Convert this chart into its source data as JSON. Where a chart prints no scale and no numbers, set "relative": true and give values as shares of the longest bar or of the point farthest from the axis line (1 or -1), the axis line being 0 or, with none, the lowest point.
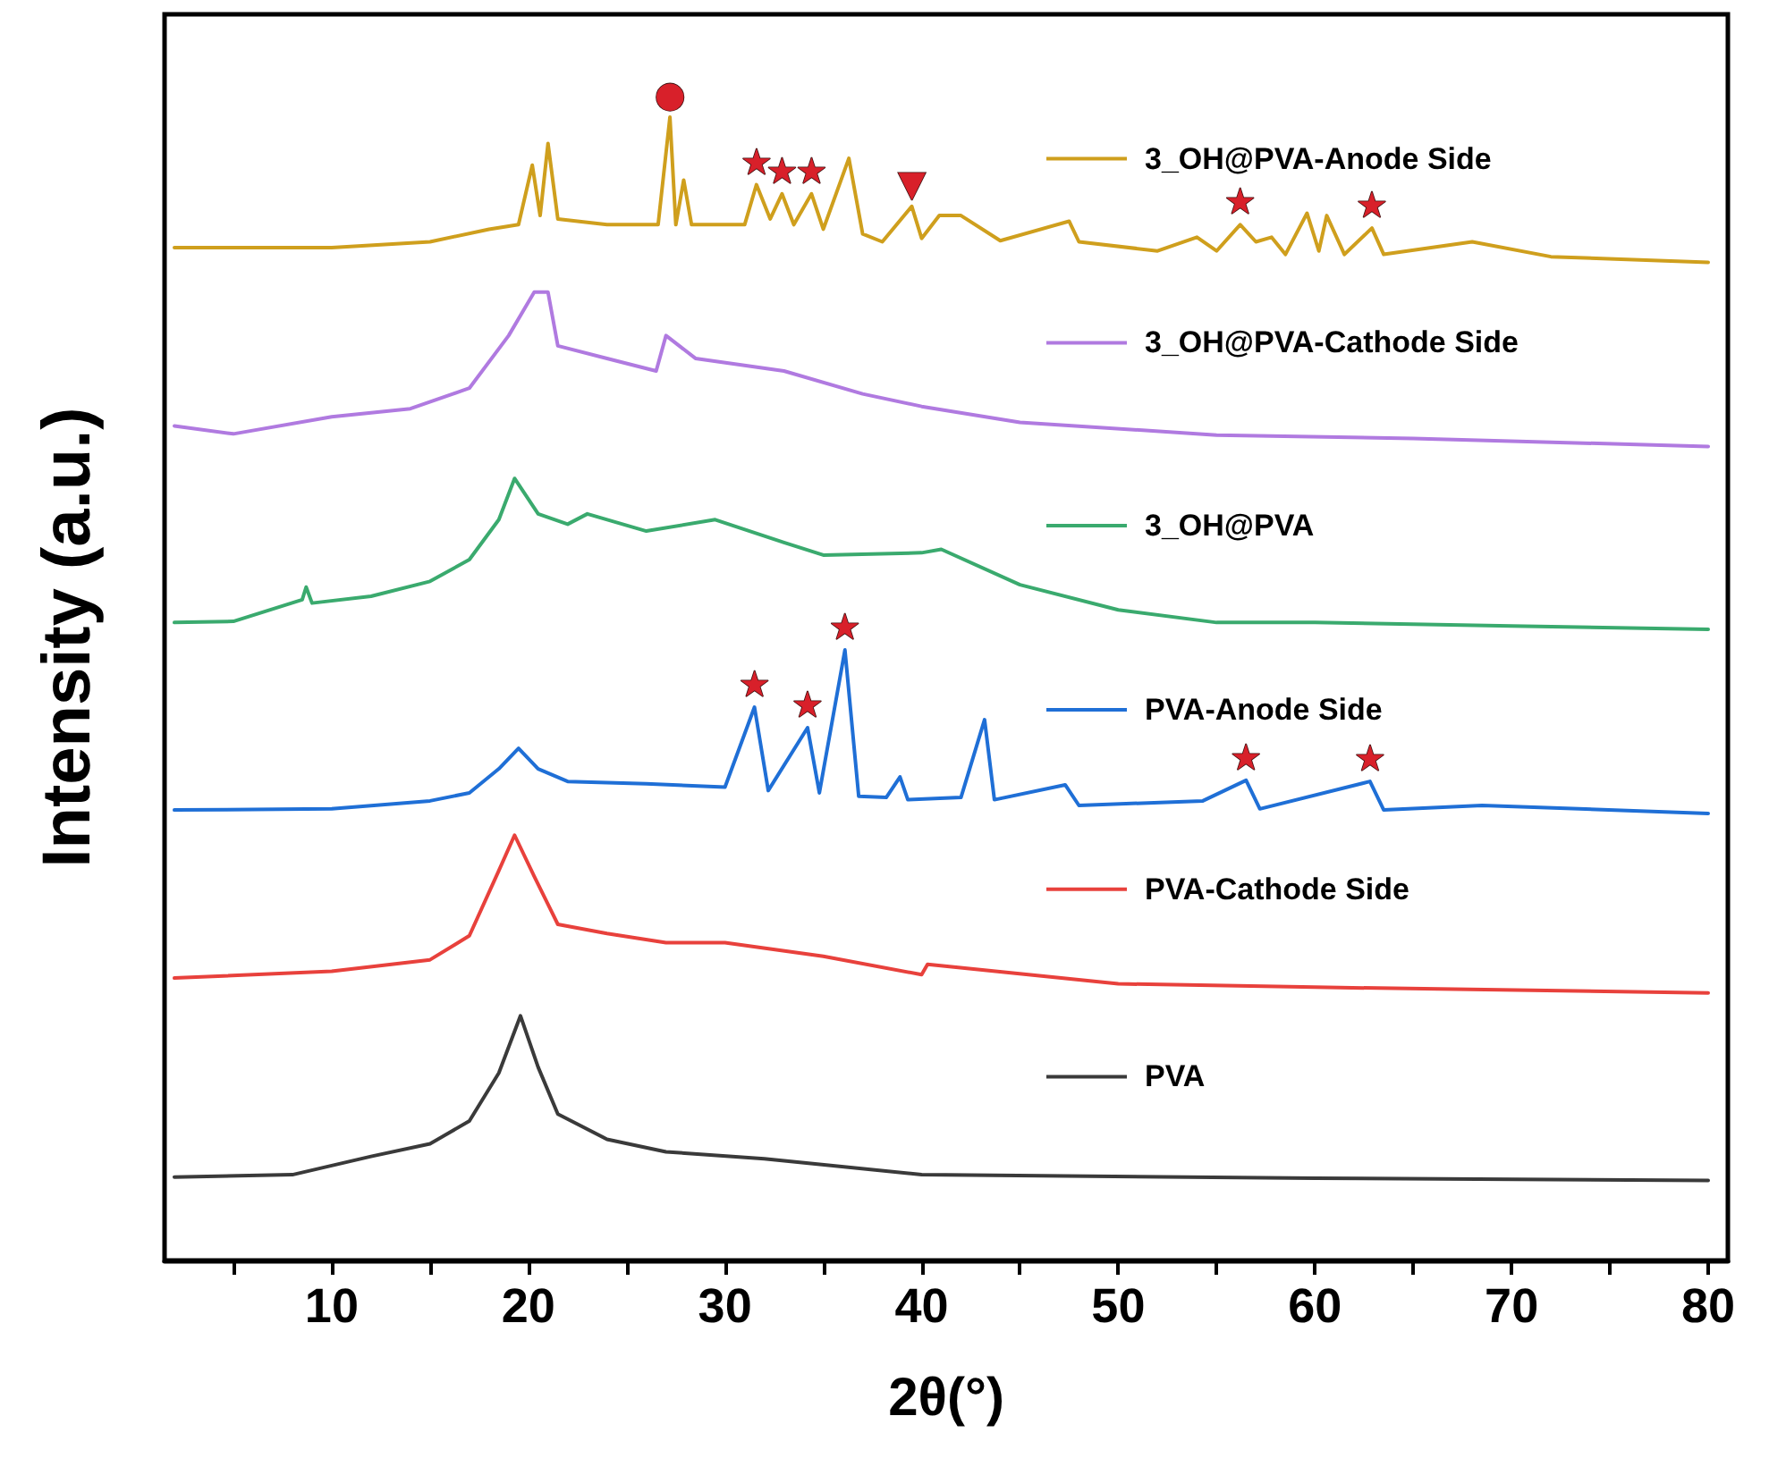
{
  "chart_data": {
    "type": "line",
    "relative": true,
    "xlabel": "2θ(°)",
    "ylabel": "Intensity (a.u.)",
    "xlim": [
      1.5,
      81
    ],
    "xticks": [
      {
        "value": 5,
        "label": null
      },
      10,
      {
        "value": 15,
        "label": null
      },
      20,
      {
        "value": 25,
        "label": null
      },
      30,
      {
        "value": 35,
        "label": null
      },
      40,
      {
        "value": 45,
        "label": null
      },
      50,
      {
        "value": 55,
        "label": null
      },
      60,
      {
        "value": 65,
        "label": null
      },
      70,
      {
        "value": 75,
        "label": null
      },
      80
    ],
    "grid": false,
    "legend": "right",
    "marker": "none",
    "line_style": "solid",
    "series": [
      {
        "name": "3_OH@PVA-Anode Side",
        "color": "#cf9f1d",
        "x": [
          2,
          10,
          15,
          18,
          19.5,
          20.2,
          20.6,
          21.0,
          21.5,
          24,
          26.6,
          27.2,
          27.5,
          27.9,
          28.3,
          31,
          31.6,
          32.3,
          32.9,
          33.5,
          34.4,
          35,
          36.3,
          37,
          38,
          39.5,
          40,
          40.9,
          42,
          44,
          47.5,
          48,
          52,
          54,
          55,
          56.2,
          57,
          57.8,
          58.5,
          59.6,
          60.2,
          60.6,
          61.5,
          62.9,
          63.5,
          68,
          72,
          80
        ],
        "values": [
          0.886,
          0.886,
          0.891,
          0.902,
          0.906,
          0.958,
          0.914,
          0.977,
          0.911,
          0.906,
          0.906,
          1.0,
          0.906,
          0.945,
          0.906,
          0.906,
          0.941,
          0.911,
          0.933,
          0.906,
          0.933,
          0.902,
          0.964,
          0.898,
          0.891,
          0.922,
          0.894,
          0.914,
          0.914,
          0.892,
          0.909,
          0.891,
          0.883,
          0.895,
          0.883,
          0.906,
          0.891,
          0.895,
          0.88,
          0.916,
          0.883,
          0.914,
          0.88,
          0.903,
          0.88,
          0.891,
          0.878,
          0.873
        ]
      },
      {
        "name": "3_OH@PVA-Cathode Side",
        "color": "#b07ae0",
        "x": [
          2,
          5,
          10,
          14,
          17,
          19,
          20.3,
          21,
          21.5,
          24,
          26.5,
          27,
          28.5,
          33,
          37,
          40,
          45,
          55,
          65,
          80
        ],
        "values": [
          0.73,
          0.723,
          0.738,
          0.745,
          0.763,
          0.809,
          0.847,
          0.847,
          0.8,
          0.789,
          0.778,
          0.809,
          0.789,
          0.778,
          0.758,
          0.747,
          0.733,
          0.722,
          0.719,
          0.712
        ]
      },
      {
        "name": "3_OH@PVA",
        "color": "#3aaa6e",
        "x": [
          2,
          5,
          8.5,
          8.7,
          9,
          12,
          15,
          17,
          18.5,
          19.3,
          20.5,
          22,
          23,
          26,
          29.5,
          33,
          35,
          40,
          41,
          45,
          50,
          55,
          60,
          70,
          80
        ],
        "values": [
          0.558,
          0.559,
          0.578,
          0.589,
          0.575,
          0.581,
          0.594,
          0.613,
          0.648,
          0.684,
          0.653,
          0.644,
          0.653,
          0.638,
          0.648,
          0.628,
          0.617,
          0.619,
          0.622,
          0.591,
          0.569,
          0.558,
          0.558,
          0.555,
          0.552
        ]
      },
      {
        "name": "PVA-Anode Side",
        "color": "#1f6fd6",
        "x": [
          2,
          10,
          15,
          17,
          18.5,
          19.5,
          20.5,
          22,
          26,
          30,
          31.5,
          32.2,
          34.2,
          34.8,
          36.1,
          36.8,
          38.2,
          38.9,
          39.3,
          42,
          43.2,
          43.7,
          47.3,
          48,
          54.3,
          56.5,
          57.2,
          62.8,
          63.5,
          68.5,
          80
        ],
        "values": [
          0.394,
          0.395,
          0.402,
          0.409,
          0.43,
          0.448,
          0.43,
          0.419,
          0.417,
          0.414,
          0.484,
          0.411,
          0.466,
          0.409,
          0.534,
          0.406,
          0.405,
          0.423,
          0.403,
          0.405,
          0.473,
          0.403,
          0.416,
          0.398,
          0.402,
          0.42,
          0.395,
          0.419,
          0.394,
          0.398,
          0.391
        ]
      },
      {
        "name": "PVA-Cathode Side",
        "color": "#e8413c",
        "x": [
          2,
          10,
          15,
          17,
          18.5,
          19.3,
          20.3,
          21.5,
          24,
          27,
          30,
          35,
          40,
          40.3,
          50,
          60,
          80
        ],
        "values": [
          0.247,
          0.253,
          0.263,
          0.284,
          0.341,
          0.372,
          0.336,
          0.294,
          0.286,
          0.278,
          0.278,
          0.266,
          0.25,
          0.259,
          0.242,
          0.239,
          0.234
        ]
      },
      {
        "name": "PVA",
        "color": "#3a3a3a",
        "x": [
          2,
          8,
          12,
          15,
          17,
          18.5,
          19.6,
          20.5,
          21.5,
          24,
          27,
          32,
          40,
          60,
          80
        ],
        "values": [
          0.073,
          0.075,
          0.091,
          0.102,
          0.122,
          0.164,
          0.214,
          0.169,
          0.128,
          0.106,
          0.095,
          0.089,
          0.075,
          0.072,
          0.07
        ]
      }
    ],
    "annotations": [
      {
        "text": "●",
        "x": 27.2,
        "y": 1.0
      },
      {
        "text": "★",
        "x": 31.6,
        "y": 0.941
      },
      {
        "text": "★",
        "x": 32.9,
        "y": 0.933
      },
      {
        "text": "★",
        "x": 34.4,
        "y": 0.933
      },
      {
        "text": "▼",
        "x": 39.5,
        "y": 0.922
      },
      {
        "text": "★",
        "x": 56.2,
        "y": 0.906
      },
      {
        "text": "★",
        "x": 62.9,
        "y": 0.903
      },
      {
        "text": "★",
        "x": 31.5,
        "y": 0.484
      },
      {
        "text": "★",
        "x": 34.2,
        "y": 0.466
      },
      {
        "text": "★",
        "x": 36.1,
        "y": 0.534
      },
      {
        "text": "★",
        "x": 56.5,
        "y": 0.42
      },
      {
        "text": "★",
        "x": 62.8,
        "y": 0.419
      }
    ]
  }
}
